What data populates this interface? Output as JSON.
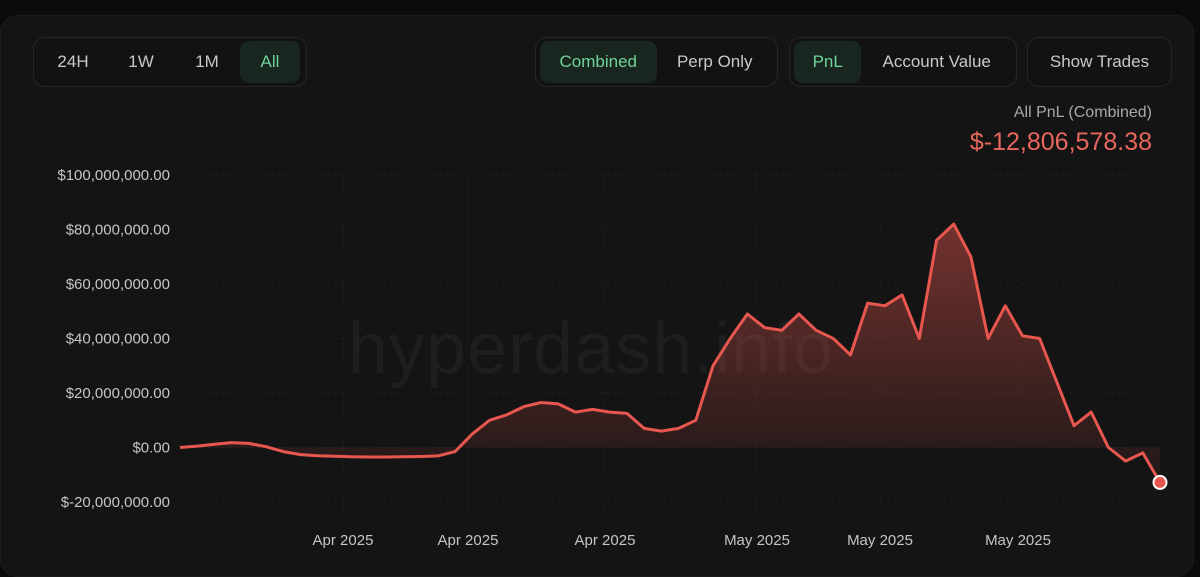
{
  "time_range": {
    "options": [
      "24H",
      "1W",
      "1M",
      "All"
    ],
    "selected": "All"
  },
  "mode_toggle": {
    "options": [
      "Combined",
      "Perp Only"
    ],
    "selected": "Combined"
  },
  "metric_toggle": {
    "options": [
      "PnL",
      "Account Value"
    ],
    "selected": "PnL"
  },
  "show_trades_label": "Show Trades",
  "summary": {
    "label": "All PnL (Combined)",
    "value": "$-12,806,578.38"
  },
  "watermark": "hyperdash.info",
  "colors": {
    "line": "#e8574f",
    "accent_green": "#6fd39a",
    "negative_value": "#e8675d"
  },
  "chart_data": {
    "type": "area",
    "title": "",
    "xlabel": "",
    "ylabel": "",
    "ylim": [
      -20000000,
      100000000
    ],
    "y_ticks": [
      100000000,
      80000000,
      60000000,
      40000000,
      20000000,
      0,
      -20000000
    ],
    "y_tick_labels": [
      "$100,000,000.00",
      "$80,000,000.00",
      "$60,000,000.00",
      "$40,000,000.00",
      "$20,000,000.00",
      "$0.00",
      "$-20,000,000.00"
    ],
    "x_tick_labels": [
      "Apr 2025",
      "Apr 2025",
      "Apr 2025",
      "May 2025",
      "May 2025",
      "May 2025"
    ],
    "grid": true,
    "series": [
      {
        "values": [
          0,
          500000,
          1200000,
          1800000,
          1500000,
          300000,
          -1500000,
          -2600000,
          -3000000,
          -3200000,
          -3400000,
          -3500000,
          -3500000,
          -3400000,
          -3300000,
          -3100000,
          -1500000,
          5000000,
          10000000,
          12000000,
          15000000,
          16500000,
          16000000,
          13000000,
          14000000,
          13000000,
          12500000,
          7000000,
          6000000,
          7000000,
          10000000,
          30000000,
          40000000,
          49000000,
          44000000,
          43000000,
          49000000,
          43000000,
          40000000,
          34000000,
          53000000,
          52000000,
          56000000,
          40000000,
          76000000,
          82000000,
          70000000,
          40000000,
          52000000,
          41000000,
          40000000,
          24000000,
          8000000,
          13000000,
          0,
          -5000000,
          -2000000,
          -12806578
        ]
      }
    ]
  }
}
